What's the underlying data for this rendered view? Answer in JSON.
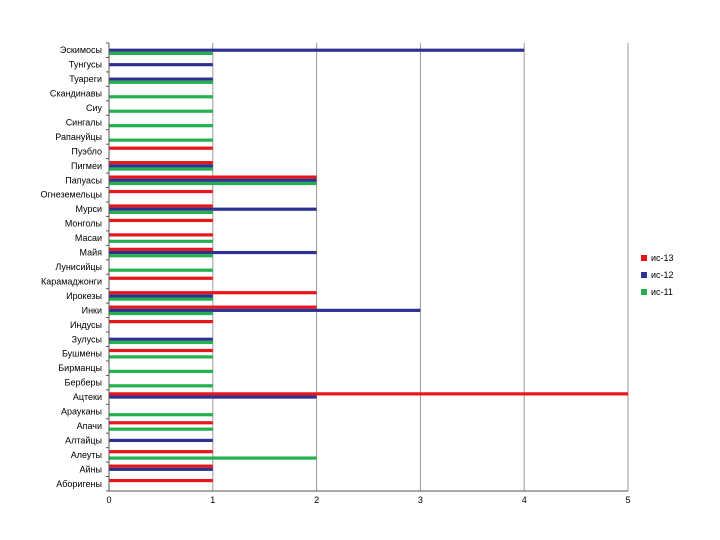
{
  "chart_data": {
    "type": "bar",
    "orientation": "horizontal",
    "categories": [
      "Эскимосы",
      "Тунгусы",
      "Туареги",
      "Скандинавы",
      "Сиу",
      "Сингалы",
      "Рапануйцы",
      "Пуэбло",
      "Пигмеи",
      "Папуасы",
      "Огнеземельцы",
      "Мурси",
      "Монголы",
      "Масаи",
      "Майя",
      "Лунисийцы",
      "Карамаджонги",
      "Ирокезы",
      "Инки",
      "Индусы",
      "Зулусы",
      "Бушмены",
      "Бирманцы",
      "Берберы",
      "Ацтеки",
      "Арауканы",
      "Апачи",
      "Алтайцы",
      "Алеуты",
      "Айны",
      "Аборигены"
    ],
    "series": [
      {
        "name": "ис-13",
        "color": "#e8161b",
        "values": [
          0,
          0,
          0,
          0,
          0,
          0,
          0,
          1,
          1,
          2,
          1,
          1,
          1,
          1,
          1,
          0,
          1,
          2,
          2,
          1,
          0,
          1,
          0,
          0,
          5,
          0,
          1,
          0,
          1,
          1,
          1
        ]
      },
      {
        "name": "ис-12",
        "color": "#2e3192",
        "values": [
          4,
          1,
          1,
          0,
          0,
          0,
          0,
          0,
          1,
          2,
          0,
          2,
          0,
          0,
          2,
          0,
          0,
          1,
          3,
          0,
          1,
          0,
          0,
          0,
          2,
          0,
          0,
          1,
          0,
          1,
          0
        ]
      },
      {
        "name": "ис-11",
        "color": "#22b14c",
        "values": [
          1,
          0,
          1,
          1,
          1,
          1,
          1,
          0,
          1,
          2,
          0,
          1,
          0,
          1,
          1,
          1,
          0,
          1,
          1,
          0,
          1,
          1,
          1,
          1,
          0,
          1,
          1,
          0,
          2,
          0,
          0
        ]
      }
    ],
    "xlim": [
      0,
      5
    ],
    "xticks": [
      "0",
      "1",
      "2",
      "3",
      "4",
      "5"
    ],
    "grid": true,
    "legend_position": "right"
  }
}
